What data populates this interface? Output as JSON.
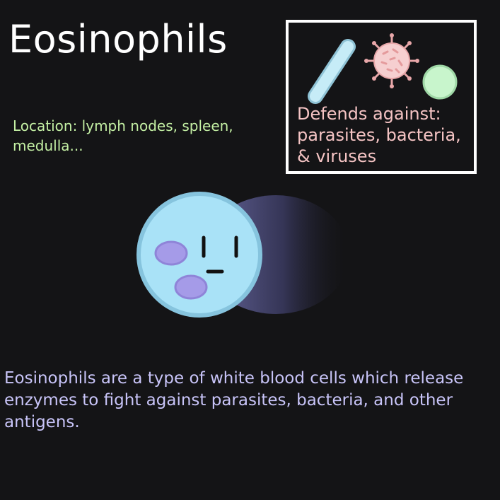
{
  "title": "Eosinophils",
  "location": {
    "lines": [
      "Location: lymph nodes, spleen,",
      "medulla..."
    ]
  },
  "defense_box": {
    "lines": [
      "Defends against:",
      "parasites, bacteria,",
      "& viruses"
    ]
  },
  "description": {
    "lines": [
      "Eosinophils are a type of white blood cells which release",
      "enzymes to fight against parasites, bacteria, and other",
      "antigens."
    ]
  },
  "icons": {
    "bacterium": "bacterium-icon",
    "virus": "virus-icon",
    "antigen": "antigen-icon",
    "cell": "eosinophil-cell-illustration"
  },
  "colors": {
    "background": "#141416",
    "title": "#ffffff",
    "location_text": "#c4f0a4",
    "defense_text": "#f5c4c4",
    "description_text": "#c8c4f8",
    "cell_fill": "#a9e2f7",
    "cell_outline": "#8cc5dd",
    "granule_fill": "#a59be8",
    "motion_trail": "#5a5a8c",
    "bacterium_fill": "#c6ecf7",
    "virus_fill": "#f6cfd0",
    "antigen_fill": "#c8f5cc"
  }
}
